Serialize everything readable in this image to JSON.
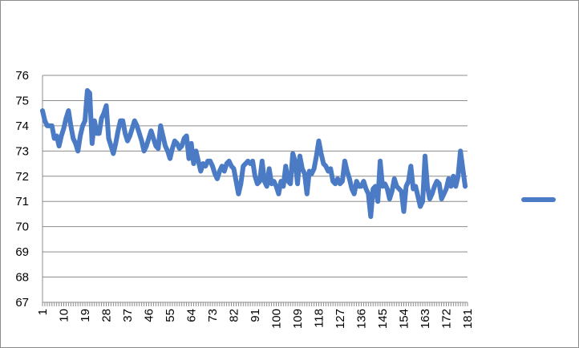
{
  "chart_data": {
    "type": "line",
    "title": "",
    "xlabel": "",
    "ylabel": "",
    "ylim": [
      67,
      76
    ],
    "yticks": [
      67,
      68,
      69,
      70,
      71,
      72,
      73,
      74,
      75,
      76
    ],
    "x_range": [
      1,
      181
    ],
    "xticks": [
      1,
      10,
      19,
      28,
      37,
      46,
      55,
      64,
      73,
      82,
      91,
      100,
      109,
      118,
      127,
      136,
      145,
      154,
      163,
      172,
      181
    ],
    "grid": "horizontal",
    "legend": {
      "position": "right",
      "entries": [
        ""
      ]
    },
    "colors": {
      "series": "#4a7bc4",
      "grid": "#8c8c8c",
      "axis": "#8c8c8c",
      "border": "#8c8c8c"
    },
    "series": [
      {
        "values": [
          74.6,
          74.2,
          74.0,
          74.0,
          74.0,
          73.5,
          73.6,
          73.2,
          73.6,
          73.9,
          74.3,
          74.6,
          74.0,
          73.5,
          73.3,
          73.0,
          73.6,
          74.0,
          74.2,
          75.4,
          75.3,
          73.3,
          74.2,
          73.7,
          73.7,
          74.3,
          74.5,
          74.8,
          73.5,
          73.2,
          72.9,
          73.3,
          73.8,
          74.2,
          74.2,
          73.7,
          73.4,
          73.6,
          73.9,
          74.2,
          74.0,
          73.7,
          73.4,
          73.0,
          73.2,
          73.5,
          73.8,
          73.5,
          73.2,
          73.1,
          74.0,
          73.6,
          73.2,
          73.0,
          72.7,
          73.1,
          73.4,
          73.3,
          73.1,
          73.2,
          73.5,
          73.6,
          72.7,
          73.3,
          72.5,
          73.0,
          72.6,
          72.2,
          72.5,
          72.4,
          72.6,
          72.6,
          72.4,
          72.1,
          71.9,
          72.2,
          72.4,
          72.2,
          72.5,
          72.6,
          72.4,
          72.3,
          71.8,
          71.3,
          71.7,
          72.4,
          72.5,
          72.6,
          72.5,
          72.6,
          72.0,
          71.7,
          71.8,
          72.6,
          71.8,
          71.6,
          72.3,
          71.7,
          71.8,
          71.6,
          71.3,
          71.8,
          71.6,
          72.4,
          71.8,
          71.7,
          72.9,
          72.6,
          71.7,
          72.8,
          72.3,
          72.1,
          71.3,
          72.2,
          72.1,
          72.3,
          72.8,
          73.4,
          72.9,
          72.5,
          72.4,
          72.2,
          72.3,
          71.8,
          71.7,
          71.9,
          71.7,
          71.8,
          72.6,
          72.2,
          71.9,
          71.5,
          71.3,
          71.8,
          71.6,
          71.6,
          71.8,
          71.5,
          71.3,
          70.4,
          71.5,
          71.6,
          71.0,
          72.6,
          71.6,
          71.7,
          71.5,
          71.1,
          71.4,
          71.9,
          71.6,
          71.5,
          71.4,
          70.6,
          71.6,
          71.8,
          72.4,
          71.5,
          71.6,
          71.2,
          70.8,
          71.0,
          72.8,
          71.6,
          71.1,
          71.3,
          71.6,
          71.8,
          71.7,
          71.1,
          71.3,
          71.5,
          71.9,
          71.6,
          72.0,
          71.6,
          72.0,
          73.0,
          72.3,
          71.6
        ]
      }
    ]
  }
}
